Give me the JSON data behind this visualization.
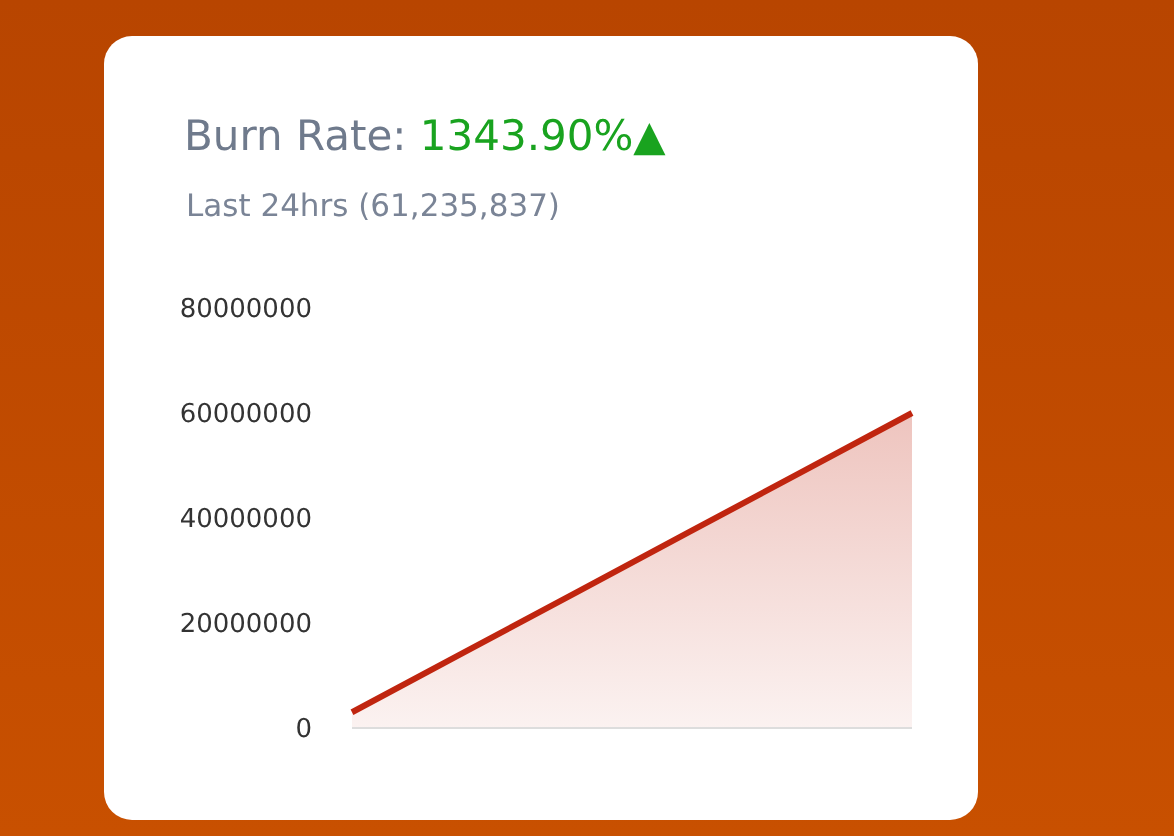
{
  "chart_data": {
    "type": "area",
    "title": "Burn Rate: 1343.90%▲",
    "subtitle": "Last 24hrs (61,235,837)",
    "categories": [
      null,
      null,
      null,
      null,
      null,
      null
    ],
    "series": [
      {
        "color": "#c0250f",
        "values": [
          3000000,
          14400000,
          25800000,
          37200000,
          48600000,
          60000000
        ]
      }
    ],
    "ylim": [
      0,
      80000000
    ],
    "yticks": [
      0,
      20000000,
      40000000,
      60000000,
      80000000
    ],
    "grid": false,
    "legend": false,
    "marker": "none",
    "tick_labels": "y"
  }
}
